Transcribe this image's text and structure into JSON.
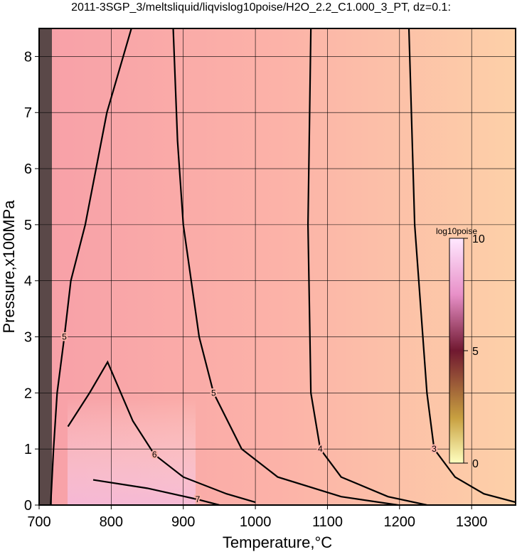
{
  "chart_data": {
    "type": "contour",
    "title": "2011-3SGP_3/meltsliquid/liqvislog10poise/H2O_2.2_C1.000_3_PT, dz=0.1:",
    "xlabel": "Temperature,°C",
    "ylabel": "Pressure,x100MPa",
    "xlim": [
      700,
      1361
    ],
    "xticks": [
      700,
      800,
      900,
      1000,
      1100,
      1200,
      1300
    ],
    "ylim": [
      0,
      8.5
    ],
    "yticks": [
      0,
      1,
      2,
      3,
      4,
      5,
      6,
      7,
      8
    ],
    "grid": true,
    "contours": [
      {
        "level": 3,
        "T": [
          1213,
          1221,
          1238,
          1248,
          1277,
          1317,
          1361
        ],
        "P": [
          8.5,
          5,
          2,
          1,
          0.5,
          0.2,
          0.05
        ]
      },
      {
        "level": 4,
        "T": [
          1077,
          1073,
          1077,
          1090,
          1119,
          1184,
          1238
        ],
        "P": [
          8.5,
          5,
          2,
          1,
          0.5,
          0.15,
          0
        ]
      },
      {
        "level": 5,
        "T": [
          886,
          892,
          900,
          922,
          942,
          981,
          1031,
          1119,
          1198
        ],
        "P": [
          8.5,
          6.5,
          5,
          3,
          2,
          1,
          0.5,
          0.15,
          0
        ]
      },
      {
        "level": 5,
        "T": [
          828,
          794,
          764,
          744,
          735,
          725,
          720,
          716
        ],
        "P": [
          8.5,
          7,
          5,
          4,
          3,
          2,
          1,
          0
        ]
      },
      {
        "level": 6,
        "T": [
          740,
          770,
          795,
          830,
          860,
          900,
          960,
          1000
        ],
        "P": [
          1.4,
          2.0,
          2.55,
          1.5,
          0.9,
          0.5,
          0.2,
          0.05
        ]
      },
      {
        "level": 7,
        "T": [
          775,
          850,
          920,
          950
        ],
        "P": [
          0.45,
          0.3,
          0.1,
          0
        ]
      }
    ],
    "colorbar": {
      "label": "log10poise",
      "lim": [
        0,
        10
      ],
      "ticks": [
        0,
        5,
        10
      ]
    }
  }
}
